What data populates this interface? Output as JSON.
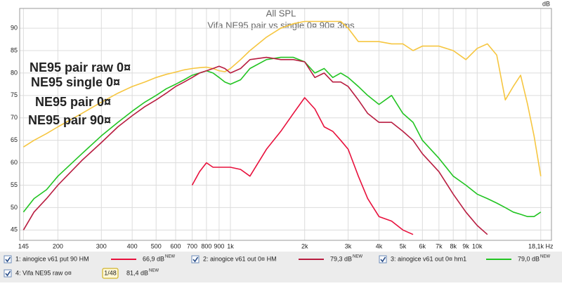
{
  "chart_data": {
    "type": "line",
    "title": "All SPL",
    "subtitle": "Vifa NE95 pair vs single 0¤ 90¤ 3ms",
    "y_label": "dB",
    "log_x": true,
    "grid": true,
    "xlim": [
      140,
      20000
    ],
    "ylim": [
      42.7,
      94.4
    ],
    "yticks": [
      45,
      50,
      55,
      60,
      65,
      70,
      75,
      80,
      85,
      90
    ],
    "xticks": [
      145,
      200,
      300,
      400,
      500,
      600,
      700,
      800,
      900,
      {
        "value": 1000,
        "label": "1k"
      },
      {
        "value": 2000,
        "label": "2k"
      },
      {
        "value": 3000,
        "label": "3k"
      },
      {
        "value": 4000,
        "label": "4k"
      },
      {
        "value": 5000,
        "label": "5k"
      },
      {
        "value": 6000,
        "label": "6k"
      },
      {
        "value": 7000,
        "label": "7k"
      },
      {
        "value": 8000,
        "label": "8k"
      },
      {
        "value": 9000,
        "label": "9k"
      },
      {
        "value": 10000,
        "label": "10k"
      },
      {
        "value": 18100,
        "label": "18,1k Hz"
      }
    ],
    "annotations": [
      {
        "text": "NE95 pair raw 0¤",
        "color": "#f6c640"
      },
      {
        "text": "NE95 single 0¤",
        "color": "#3a9a72"
      },
      {
        "text": "NE95 pair 0¤",
        "color": "#a84a2a"
      },
      {
        "text": "NE95 pair 90¤",
        "color": "#e8302e"
      }
    ],
    "level_badge": "NEW",
    "x": [
      145,
      160,
      180,
      200,
      250,
      300,
      350,
      400,
      450,
      500,
      550,
      600,
      650,
      700,
      750,
      800,
      850,
      900,
      950,
      1000,
      1100,
      1200,
      1400,
      1600,
      1800,
      2000,
      2200,
      2400,
      2600,
      2800,
      3000,
      3300,
      3600,
      4000,
      4500,
      5000,
      5500,
      6000,
      7000,
      8000,
      9000,
      10000,
      11000,
      12000,
      13000,
      14000,
      15000,
      16000,
      17000,
      18100
    ],
    "series": [
      {
        "name": "1: ainogice v61 put 90 HM",
        "level": "66,9 dB",
        "color": "#e8103c",
        "values": [
          null,
          null,
          null,
          null,
          null,
          null,
          null,
          null,
          null,
          null,
          null,
          null,
          null,
          55,
          58,
          60,
          59,
          59,
          59,
          59,
          58.5,
          57,
          63,
          67,
          71,
          74.5,
          72,
          68,
          67,
          65,
          63,
          57,
          52,
          48,
          47,
          45,
          44,
          null,
          null,
          null,
          null,
          null,
          null,
          null,
          null,
          null,
          null,
          null,
          null,
          null
        ]
      },
      {
        "name": "2: ainogice v61 out 0¤ HM",
        "level": "79,3 dB",
        "color": "#b81c40",
        "values": [
          45,
          49,
          52,
          55,
          60.5,
          64.5,
          68,
          70.5,
          72.5,
          74,
          75.5,
          77,
          78,
          79,
          80,
          80.5,
          81,
          81.5,
          81,
          80,
          81,
          83,
          83.5,
          83,
          83,
          82.5,
          79,
          80,
          78,
          78,
          77,
          74,
          71,
          69,
          69,
          67,
          65,
          62,
          58,
          53,
          49,
          46,
          44,
          null,
          null,
          null,
          null,
          null,
          null,
          null
        ]
      },
      {
        "name": "3: ainogice v61 out 0¤ hm1",
        "level": "79,0 dB",
        "color": "#22c422",
        "values": [
          49,
          52,
          54,
          57,
          62,
          66,
          69,
          71.5,
          73.5,
          75,
          76.5,
          77.5,
          78.5,
          79.5,
          80,
          80.5,
          80,
          79,
          78,
          77.5,
          78.5,
          81,
          83,
          83.5,
          83.5,
          82.5,
          80,
          81,
          79,
          80,
          79,
          77,
          75,
          73,
          75,
          71,
          69,
          65,
          61,
          57,
          55,
          53,
          52,
          51,
          50,
          49,
          48.5,
          48,
          48,
          49
        ]
      },
      {
        "name": "4: Vifa NE95 raw o¤",
        "level": "81,4 dB",
        "smoothing": "1/48",
        "color": "#f6c640",
        "values": [
          63.5,
          65,
          66.5,
          68,
          71,
          73.5,
          75.5,
          77,
          78,
          79,
          79.7,
          80.2,
          80.7,
          81,
          81.2,
          81.3,
          81,
          80.5,
          80.3,
          81,
          83,
          85,
          88,
          90,
          91,
          91.5,
          91.5,
          91.5,
          91.5,
          91.5,
          90,
          87,
          87,
          87,
          86.5,
          86.5,
          85,
          86,
          86,
          85,
          83,
          85.5,
          86.5,
          84,
          74,
          77,
          79.5,
          73,
          66,
          57
        ]
      }
    ]
  }
}
